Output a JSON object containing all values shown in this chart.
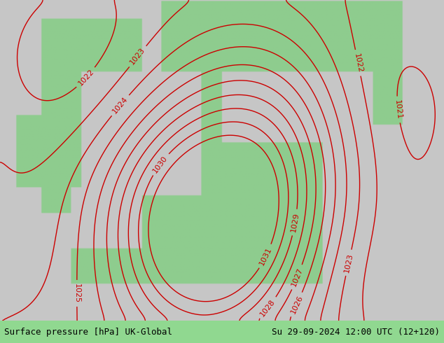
{
  "title_left": "Surface pressure [hPa] UK-Global",
  "title_right": "Su 29-09-2024 12:00 UTC (12+120)",
  "bg_color_light": "#b8e8b0",
  "bg_color_dark": "#d0d0d0",
  "contour_color": "#cc0000",
  "label_color": "#cc0000",
  "land_color": "#90c890",
  "sea_color": "#c8c8c8",
  "text_color": "#000000",
  "footer_bg": "#90d890",
  "pressure_min": 1020,
  "pressure_max": 1031,
  "pressure_step": 1,
  "figwidth": 6.34,
  "figheight": 4.9,
  "dpi": 100,
  "font_size_label": 8,
  "font_size_footer": 9
}
